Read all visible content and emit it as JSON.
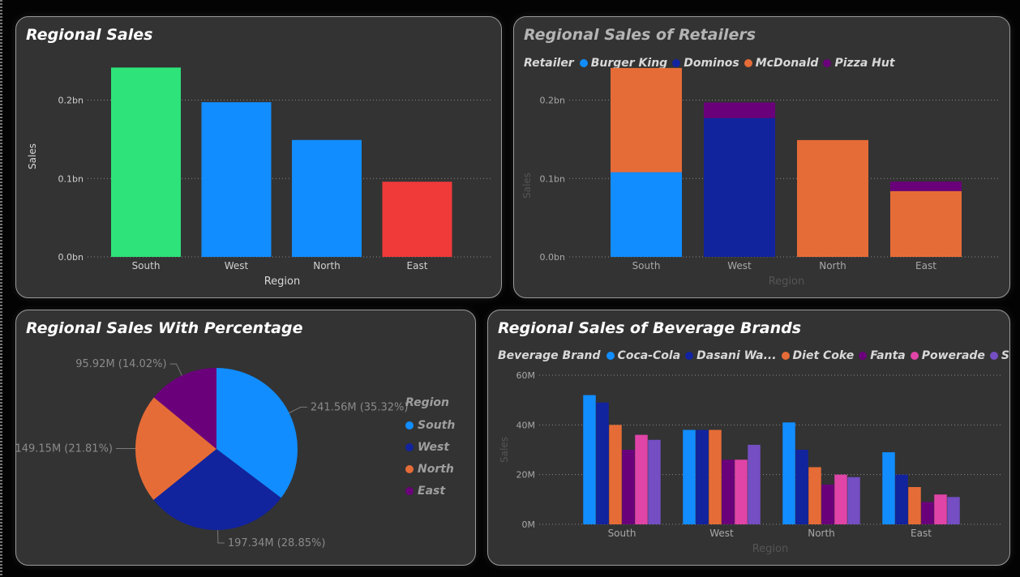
{
  "regional_sales": {
    "title": "Regional Sales",
    "chart_data": {
      "type": "bar",
      "title": "Regional Sales",
      "xlabel": "Region",
      "ylabel": "Sales",
      "categories": [
        "South",
        "West",
        "North",
        "East"
      ],
      "values": [
        241.56,
        197.34,
        149.15,
        95.92
      ],
      "value_unit": "M",
      "bar_colors": [
        "#2ee37a",
        "#118dff",
        "#118dff",
        "#f03a3a"
      ],
      "yticks": [
        0,
        100,
        200
      ],
      "ytick_labels": [
        "0.0bn",
        "0.1bn",
        "0.2bn"
      ],
      "ylim": [
        0,
        245
      ],
      "grid": true
    }
  },
  "retailer_sales": {
    "title": "Regional Sales of Retailers",
    "legend_title": "Retailer",
    "chart_data": {
      "type": "bar",
      "stacked": true,
      "title": "Regional Sales of Retailers",
      "xlabel": "Region",
      "ylabel": "Sales",
      "categories": [
        "South",
        "West",
        "North",
        "East"
      ],
      "series": [
        {
          "name": "Burger King",
          "color": "#118dff",
          "values": [
            108,
            0,
            0,
            0
          ]
        },
        {
          "name": "Dominos",
          "color": "#12239e",
          "values": [
            0,
            177,
            0,
            0
          ]
        },
        {
          "name": "McDonald",
          "color": "#e66c37",
          "values": [
            133,
            0,
            149,
            84
          ]
        },
        {
          "name": "Pizza Hut",
          "color": "#6b007b",
          "values": [
            0,
            20,
            0,
            12
          ]
        }
      ],
      "value_unit": "M",
      "yticks": [
        0,
        100,
        200
      ],
      "ytick_labels": [
        "0.0bn",
        "0.1bn",
        "0.2bn"
      ],
      "ylim": [
        0,
        245
      ],
      "legend_position": "top-left",
      "grid": true
    }
  },
  "percentage_sales": {
    "title": "Regional Sales With Percentage",
    "legend_title": "Region",
    "chart_data": {
      "type": "pie",
      "title": "Regional Sales With Percentage",
      "categories": [
        "South",
        "West",
        "North",
        "East"
      ],
      "values": [
        241.56,
        197.34,
        149.15,
        95.92
      ],
      "colors": [
        "#118dff",
        "#12239e",
        "#e66c37",
        "#6b007b"
      ],
      "labels": [
        "241.56M (35.32%)",
        "197.34M (28.85%)",
        "149.15M (21.81%)",
        "95.92M (14.02%)"
      ],
      "legend_position": "right"
    }
  },
  "beverage_sales": {
    "title": "Regional Sales of Beverage Brands",
    "legend_title": "Beverage Brand",
    "chart_data": {
      "type": "bar",
      "title": "Regional Sales of Beverage Brands",
      "xlabel": "Region",
      "ylabel": "Sales",
      "categories": [
        "South",
        "West",
        "North",
        "East"
      ],
      "series": [
        {
          "name": "Coca-Cola",
          "legend_label": "Coca-Cola",
          "color": "#118dff",
          "values": [
            52,
            38,
            41,
            29
          ]
        },
        {
          "name": "Dasani Wa...",
          "legend_label": "Dasani Wa...",
          "color": "#12239e",
          "values": [
            49,
            38,
            30,
            20
          ]
        },
        {
          "name": "Diet Coke",
          "legend_label": "Diet Coke",
          "color": "#e66c37",
          "values": [
            40,
            38,
            23,
            15
          ]
        },
        {
          "name": "Fanta",
          "legend_label": "Fanta",
          "color": "#6b007b",
          "values": [
            30,
            26,
            16,
            9
          ]
        },
        {
          "name": "Powerade",
          "legend_label": "Powerade",
          "color": "#e044a7",
          "values": [
            36,
            26,
            20,
            12
          ]
        },
        {
          "name": "Sprite",
          "legend_label": "Sprite",
          "color": "#744ec2",
          "values": [
            34,
            32,
            19,
            11
          ]
        }
      ],
      "value_unit": "M",
      "yticks": [
        0,
        20,
        40,
        60
      ],
      "ytick_labels": [
        "0M",
        "20M",
        "40M",
        "60M"
      ],
      "ylim": [
        0,
        60
      ],
      "legend_position": "top-left",
      "grid": true
    }
  }
}
